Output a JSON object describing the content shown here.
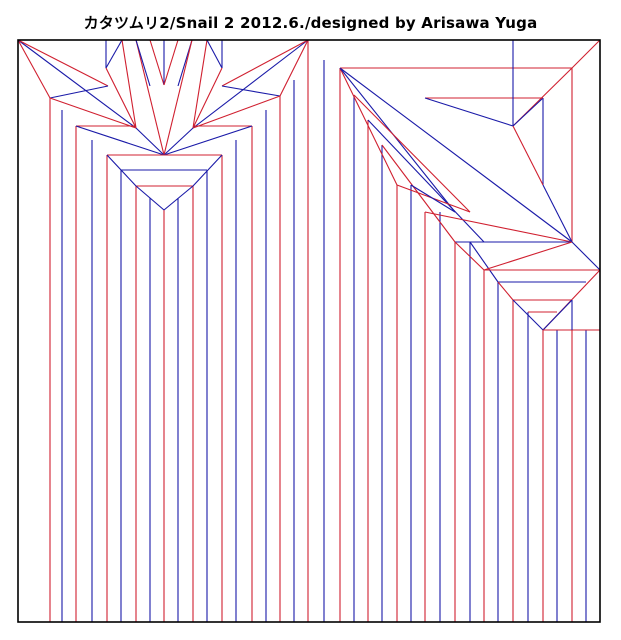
{
  "title": "カタツムリ2/Snail 2  2012.6./designed by Arisawa Yuga",
  "colors": {
    "mountain": "#d02030",
    "valley": "#1a1aa8",
    "edge": "#000000",
    "background": "#ffffff"
  }
}
